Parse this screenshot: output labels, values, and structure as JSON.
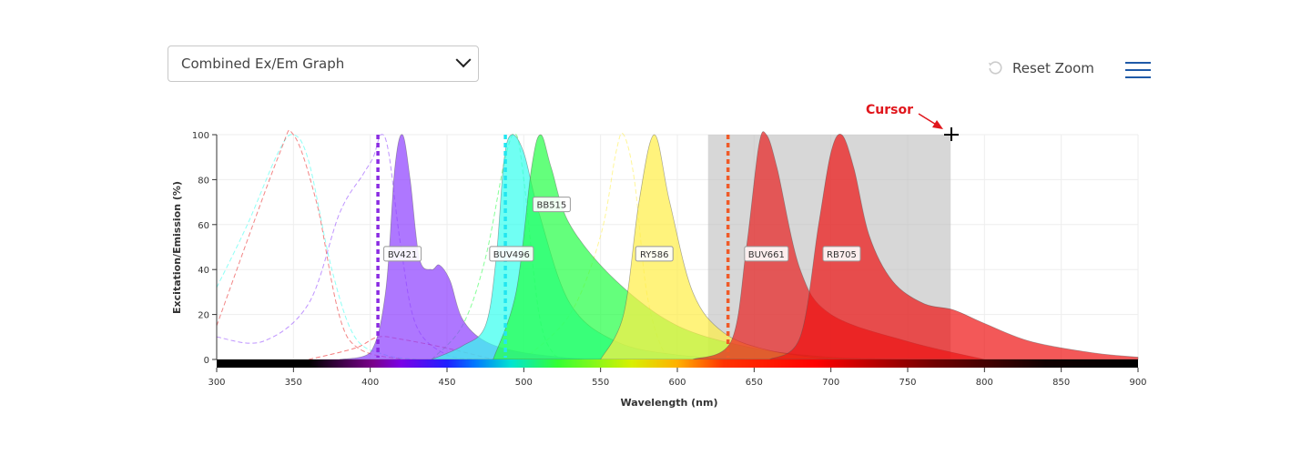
{
  "toolbar": {
    "graph_select_value": "Combined Ex/Em Graph",
    "reset_zoom_label": "Reset Zoom",
    "menu_icon": "hamburger-menu-icon",
    "reset_icon": "rotate-ccw-icon",
    "accent_color": "#1f5aa8"
  },
  "annotation": {
    "cursor_label": "Cursor",
    "color": "#e0161c"
  },
  "chart_data": {
    "type": "area",
    "xlabel": "Wavelength (nm)",
    "ylabel": "Excitation/Emission (%)",
    "xlim": [
      300,
      900
    ],
    "ylim": [
      0,
      100
    ],
    "xticks": [
      300,
      350,
      400,
      450,
      500,
      550,
      600,
      650,
      700,
      750,
      800,
      850,
      900
    ],
    "yticks": [
      0,
      20,
      40,
      60,
      80,
      100
    ],
    "grid": true,
    "zoom_selection_nm": [
      620,
      778
    ],
    "lasers": [
      {
        "nm": 405,
        "color": "#8a2be2"
      },
      {
        "nm": 488,
        "color": "#22e6f0"
      },
      {
        "nm": 633,
        "color": "#f05a28"
      }
    ],
    "series": [
      {
        "name": "BV421",
        "color": "#8b3dff",
        "emission": [
          [
            380,
            0
          ],
          [
            400,
            3
          ],
          [
            410,
            30
          ],
          [
            416,
            85
          ],
          [
            421,
            100
          ],
          [
            426,
            80
          ],
          [
            432,
            45
          ],
          [
            440,
            40
          ],
          [
            445,
            42
          ],
          [
            452,
            35
          ],
          [
            460,
            18
          ],
          [
            475,
            8
          ],
          [
            500,
            3
          ],
          [
            540,
            0
          ]
        ],
        "excitation": [
          [
            300,
            10
          ],
          [
            330,
            8
          ],
          [
            360,
            25
          ],
          [
            380,
            65
          ],
          [
            395,
            82
          ],
          [
            402,
            90
          ],
          [
            407,
            100
          ],
          [
            412,
            92
          ],
          [
            420,
            50
          ],
          [
            430,
            15
          ],
          [
            450,
            2
          ],
          [
            470,
            0
          ]
        ]
      },
      {
        "name": "BUV496",
        "color": "#33ffee",
        "emission": [
          [
            440,
            0
          ],
          [
            460,
            6
          ],
          [
            475,
            15
          ],
          [
            482,
            45
          ],
          [
            487,
            88
          ],
          [
            492,
            100
          ],
          [
            500,
            92
          ],
          [
            510,
            65
          ],
          [
            530,
            25
          ],
          [
            560,
            8
          ],
          [
            600,
            2
          ],
          [
            650,
            0
          ]
        ],
        "excitation": [
          [
            300,
            32
          ],
          [
            320,
            60
          ],
          [
            340,
            92
          ],
          [
            350,
            100
          ],
          [
            360,
            88
          ],
          [
            375,
            40
          ],
          [
            390,
            10
          ],
          [
            410,
            2
          ],
          [
            430,
            0
          ]
        ]
      },
      {
        "name": "BB515",
        "color": "#22ff44",
        "emission": [
          [
            480,
            0
          ],
          [
            495,
            30
          ],
          [
            505,
            85
          ],
          [
            511,
            100
          ],
          [
            518,
            85
          ],
          [
            530,
            60
          ],
          [
            560,
            35
          ],
          [
            600,
            15
          ],
          [
            650,
            5
          ],
          [
            700,
            1
          ],
          [
            750,
            0
          ]
        ],
        "excitation": [
          [
            440,
            0
          ],
          [
            460,
            15
          ],
          [
            475,
            45
          ],
          [
            488,
            90
          ],
          [
            495,
            100
          ],
          [
            500,
            80
          ],
          [
            510,
            20
          ],
          [
            520,
            2
          ],
          [
            530,
            0
          ]
        ]
      },
      {
        "name": "RY586",
        "color": "#ffee44",
        "emission": [
          [
            550,
            0
          ],
          [
            565,
            20
          ],
          [
            575,
            70
          ],
          [
            585,
            100
          ],
          [
            595,
            70
          ],
          [
            610,
            30
          ],
          [
            630,
            12
          ],
          [
            660,
            4
          ],
          [
            700,
            0
          ]
        ],
        "excitation": [
          [
            500,
            0
          ],
          [
            530,
            20
          ],
          [
            550,
            55
          ],
          [
            560,
            92
          ],
          [
            565,
            100
          ],
          [
            572,
            80
          ],
          [
            580,
            30
          ],
          [
            590,
            5
          ],
          [
            600,
            0
          ]
        ]
      },
      {
        "name": "BUV661",
        "color": "#e82020",
        "emission": [
          [
            610,
            0
          ],
          [
            635,
            8
          ],
          [
            645,
            50
          ],
          [
            653,
            95
          ],
          [
            658,
            100
          ],
          [
            665,
            85
          ],
          [
            680,
            40
          ],
          [
            700,
            20
          ],
          [
            750,
            8
          ],
          [
            800,
            0
          ]
        ],
        "excitation": [
          [
            300,
            15
          ],
          [
            340,
            90
          ],
          [
            350,
            100
          ],
          [
            365,
            70
          ],
          [
            385,
            10
          ],
          [
            420,
            0
          ]
        ]
      },
      {
        "name": "RB705",
        "color": "#ee1111",
        "emission": [
          [
            660,
            0
          ],
          [
            680,
            10
          ],
          [
            692,
            60
          ],
          [
            700,
            92
          ],
          [
            707,
            100
          ],
          [
            715,
            85
          ],
          [
            725,
            55
          ],
          [
            740,
            35
          ],
          [
            760,
            25
          ],
          [
            780,
            22
          ],
          [
            800,
            16
          ],
          [
            830,
            8
          ],
          [
            870,
            3
          ],
          [
            900,
            1
          ]
        ],
        "excitation": [
          [
            360,
            0
          ],
          [
            390,
            5
          ],
          [
            405,
            10
          ],
          [
            420,
            9
          ],
          [
            450,
            5
          ],
          [
            480,
            0
          ]
        ]
      }
    ]
  }
}
